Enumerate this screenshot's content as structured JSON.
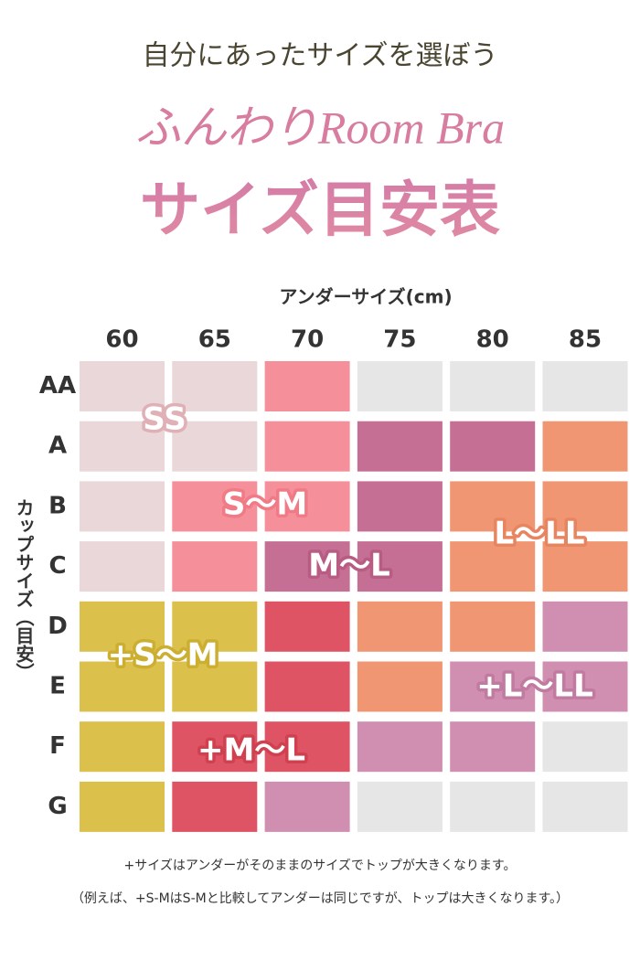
{
  "header": {
    "lead": "自分にあったサイズを選ぼう",
    "brand": "ふんわりRoom Bra",
    "title": "サイズ目安表"
  },
  "table": {
    "column_heading": "アンダーサイズ(cm)",
    "row_heading": "カップサイズ（目安）",
    "columns": [
      "60",
      "65",
      "70",
      "75",
      "80",
      "85"
    ],
    "rows": [
      {
        "label": "AA",
        "colors": [
          "#ead7d9",
          "#ead7d9",
          "#f58f99",
          "#e6e6e6",
          "#e6e6e6",
          "#e6e6e6"
        ]
      },
      {
        "label": "A",
        "colors": [
          "#ead7d9",
          "#ead7d9",
          "#f58f99",
          "#c46f93",
          "#c46f93",
          "#f09673"
        ]
      },
      {
        "label": "B",
        "colors": [
          "#ead7d9",
          "#f58f99",
          "#f58f99",
          "#c46f93",
          "#f09673",
          "#f09673"
        ]
      },
      {
        "label": "C",
        "colors": [
          "#ead7d9",
          "#f58f99",
          "#c46f93",
          "#c46f93",
          "#f09673",
          "#f09673"
        ]
      },
      {
        "label": "D",
        "colors": [
          "#dcc04c",
          "#dcc04c",
          "#df5464",
          "#f09673",
          "#f09673",
          "#d08fb0"
        ]
      },
      {
        "label": "E",
        "colors": [
          "#dcc04c",
          "#dcc04c",
          "#df5464",
          "#f09673",
          "#d08fb0",
          "#d08fb0"
        ]
      },
      {
        "label": "F",
        "colors": [
          "#dcc04c",
          "#df5464",
          "#df5464",
          "#d08fb0",
          "#d08fb0",
          "#e6e6e6"
        ]
      },
      {
        "label": "G",
        "colors": [
          "#dcc04c",
          "#df5464",
          "#d08fb0",
          "#e6e6e6",
          "#e6e6e6",
          "#e6e6e6"
        ]
      }
    ],
    "regions": [
      {
        "text": "SS",
        "color": "#dfb0b6"
      },
      {
        "text": "S～M",
        "color": "#f07a86"
      },
      {
        "text": "M～L",
        "color": "#b85c84"
      },
      {
        "text": "L～LL",
        "color": "#e88561"
      },
      {
        "text": "+S～M",
        "color": "#ccae30"
      },
      {
        "text": "+M～L",
        "color": "#d0404f"
      },
      {
        "text": "+L～LL",
        "color": "#c17aa0"
      }
    ]
  },
  "notes": [
    "+サイズはアンダーがそのままのサイズでトップが大きくなります。",
    "（例えば、+S-MはS-Mと比較してアンダーは同じですが、トップは大きくなります。）"
  ]
}
